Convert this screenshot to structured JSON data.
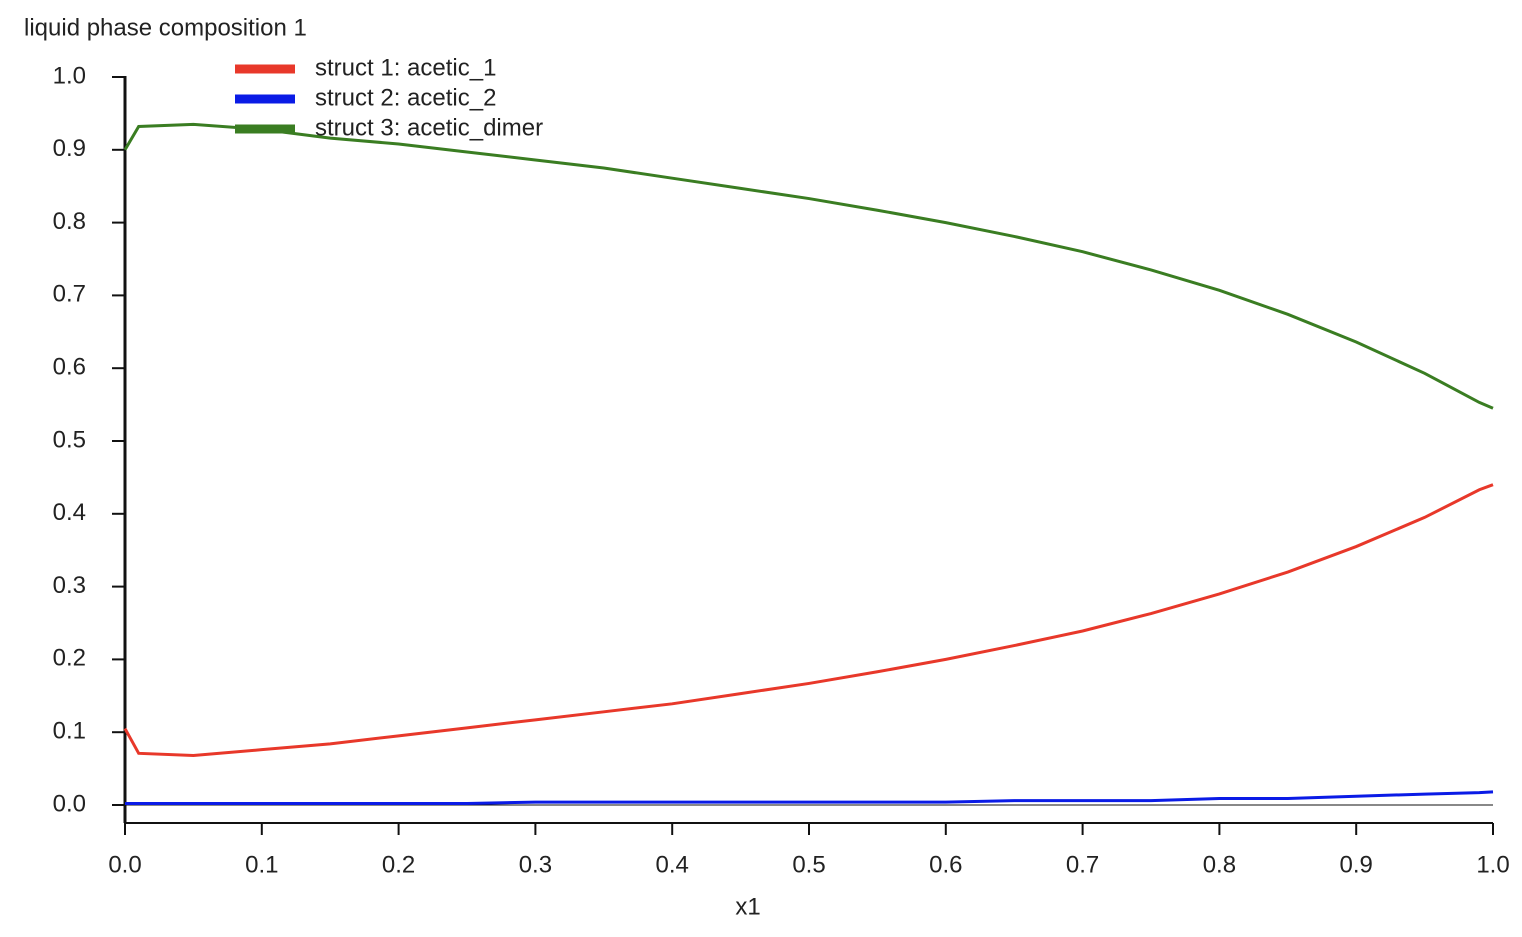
{
  "chart_data": {
    "type": "line",
    "title": "liquid phase composition 1",
    "x_label": "x1",
    "x": [
      0,
      0.01,
      0.05,
      0.1,
      0.15,
      0.2,
      0.25,
      0.3,
      0.35,
      0.4,
      0.45,
      0.5,
      0.55,
      0.6,
      0.65,
      0.7,
      0.75,
      0.8,
      0.85,
      0.9,
      0.95,
      0.99,
      1.0
    ],
    "series": [
      {
        "name": "struct 1: acetic_1",
        "color": "#e8382a",
        "values": [
          0.105,
          0.071,
          0.068,
          0.076,
          0.084,
          0.095,
          0.106,
          0.117,
          0.128,
          0.139,
          0.153,
          0.167,
          0.183,
          0.2,
          0.219,
          0.239,
          0.263,
          0.29,
          0.32,
          0.355,
          0.395,
          0.433,
          0.44
        ]
      },
      {
        "name": "struct 2: acetic_2",
        "color": "#0a1be6",
        "values": [
          0.002,
          0.002,
          0.002,
          0.002,
          0.002,
          0.002,
          0.002,
          0.004,
          0.004,
          0.004,
          0.004,
          0.004,
          0.004,
          0.004,
          0.006,
          0.006,
          0.006,
          0.009,
          0.009,
          0.012,
          0.015,
          0.017,
          0.018
        ]
      },
      {
        "name": "struct 3: acetic_dimer",
        "color": "#3a7d22",
        "values": [
          0.9,
          0.932,
          0.935,
          0.928,
          0.916,
          0.908,
          0.897,
          0.886,
          0.875,
          0.861,
          0.847,
          0.833,
          0.817,
          0.8,
          0.781,
          0.76,
          0.735,
          0.707,
          0.674,
          0.636,
          0.593,
          0.553,
          0.545
        ]
      }
    ],
    "xlim": [
      0,
      1.0
    ],
    "ylim": [
      0,
      1.0
    ],
    "xticks": [
      {
        "value": 0,
        "label": "0.0"
      },
      0.1,
      0.2,
      0.3,
      0.4,
      0.5,
      0.6,
      0.7,
      0.8,
      0.9,
      {
        "value": 1,
        "label": "1.0"
      }
    ],
    "yticks": [
      {
        "value": 0,
        "label": "0.0"
      },
      0.1,
      0.2,
      0.3,
      0.4,
      0.5,
      0.6,
      0.7,
      0.8,
      0.9,
      {
        "value": 1,
        "label": "1.0"
      }
    ],
    "grid": false,
    "zero_line": true,
    "legend": "top-left"
  }
}
